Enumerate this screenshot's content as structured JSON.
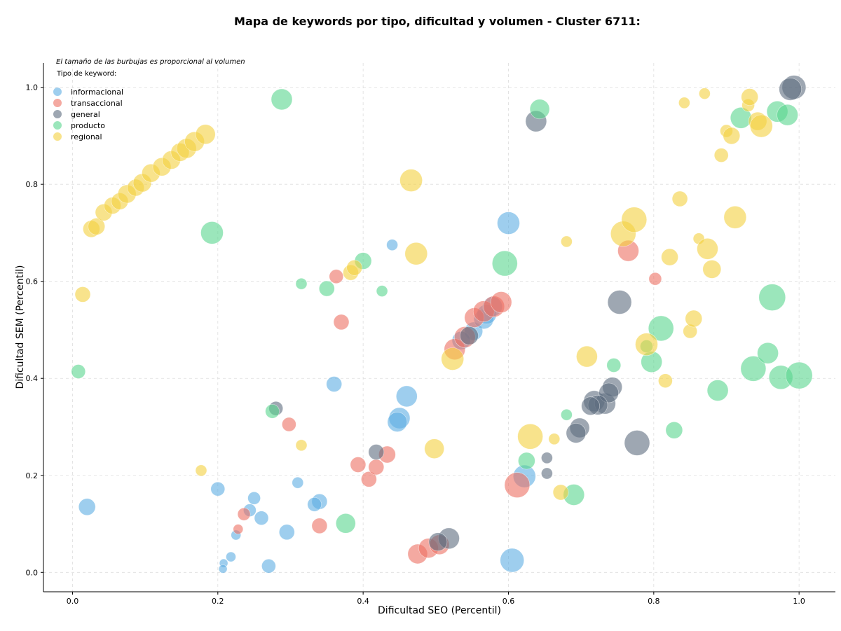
{
  "chart_data": {
    "type": "scatter",
    "title": "Mapa de keywords por tipo, dificultad y volumen - Cluster 6711:",
    "xlabel": "Dificultad SEO (Percentil)",
    "ylabel": "Dificultad SEM (Percentil)",
    "xlim": [
      -0.04,
      1.05
    ],
    "ylim": [
      -0.04,
      1.05
    ],
    "xticks": [
      "0.0",
      "0.2",
      "0.4",
      "0.6",
      "0.8",
      "1.0"
    ],
    "yticks": [
      "0.0",
      "0.2",
      "0.4",
      "0.6",
      "0.8",
      "1.0"
    ],
    "grid": true,
    "note": "El tamaño de las burbujas es proporcional al volumen",
    "legend_title": "Tipo de keyword:",
    "legend_position": "top-left",
    "series": [
      {
        "name": "informacional",
        "color": "#5dade2",
        "points": [
          [
            0.6,
            0.72,
            16
          ],
          [
            0.44,
            0.675,
            8
          ],
          [
            0.36,
            0.388,
            11
          ],
          [
            0.46,
            0.363,
            15
          ],
          [
            0.45,
            0.318,
            15
          ],
          [
            0.447,
            0.31,
            14
          ],
          [
            0.02,
            0.135,
            12
          ],
          [
            0.2,
            0.172,
            10
          ],
          [
            0.25,
            0.153,
            9
          ],
          [
            0.26,
            0.112,
            10
          ],
          [
            0.244,
            0.128,
            9
          ],
          [
            0.31,
            0.185,
            8
          ],
          [
            0.34,
            0.146,
            11
          ],
          [
            0.333,
            0.14,
            10
          ],
          [
            0.295,
            0.083,
            11
          ],
          [
            0.27,
            0.013,
            10
          ],
          [
            0.218,
            0.032,
            7
          ],
          [
            0.208,
            0.019,
            6
          ],
          [
            0.207,
            0.007,
            6
          ],
          [
            0.225,
            0.077,
            7
          ],
          [
            0.605,
            0.025,
            17
          ],
          [
            0.622,
            0.198,
            16
          ],
          [
            0.552,
            0.497,
            13
          ],
          [
            0.566,
            0.522,
            14
          ],
          [
            0.57,
            0.532,
            14
          ],
          [
            0.578,
            0.548,
            14
          ],
          [
            0.535,
            0.478,
            13
          ]
        ]
      },
      {
        "name": "transaccional",
        "color": "#ec7063",
        "points": [
          [
            0.363,
            0.61,
            10
          ],
          [
            0.37,
            0.516,
            11
          ],
          [
            0.298,
            0.305,
            10
          ],
          [
            0.393,
            0.222,
            11
          ],
          [
            0.408,
            0.192,
            11
          ],
          [
            0.418,
            0.217,
            11
          ],
          [
            0.433,
            0.243,
            12
          ],
          [
            0.34,
            0.096,
            11
          ],
          [
            0.236,
            0.12,
            9
          ],
          [
            0.228,
            0.089,
            7
          ],
          [
            0.475,
            0.038,
            14
          ],
          [
            0.49,
            0.05,
            14
          ],
          [
            0.505,
            0.057,
            14
          ],
          [
            0.612,
            0.18,
            18
          ],
          [
            0.765,
            0.663,
            15
          ],
          [
            0.802,
            0.605,
            9
          ],
          [
            0.526,
            0.46,
            15
          ],
          [
            0.54,
            0.485,
            15
          ],
          [
            0.553,
            0.525,
            14
          ],
          [
            0.566,
            0.538,
            15
          ],
          [
            0.58,
            0.548,
            15
          ],
          [
            0.59,
            0.557,
            15
          ]
        ]
      },
      {
        "name": "general",
        "color": "#5d6d7e",
        "points": [
          [
            0.638,
            0.93,
            15
          ],
          [
            0.753,
            0.557,
            17
          ],
          [
            0.28,
            0.338,
            10
          ],
          [
            0.418,
            0.248,
            11
          ],
          [
            0.518,
            0.07,
            15
          ],
          [
            0.503,
            0.063,
            13
          ],
          [
            0.653,
            0.236,
            8
          ],
          [
            0.653,
            0.204,
            8
          ],
          [
            0.698,
            0.298,
            14
          ],
          [
            0.693,
            0.287,
            14
          ],
          [
            0.718,
            0.353,
            15
          ],
          [
            0.733,
            0.348,
            15
          ],
          [
            0.743,
            0.382,
            14
          ],
          [
            0.738,
            0.37,
            14
          ],
          [
            0.723,
            0.345,
            14
          ],
          [
            0.713,
            0.343,
            13
          ],
          [
            0.777,
            0.267,
            18
          ],
          [
            0.993,
            1.0,
            17
          ],
          [
            0.988,
            0.996,
            16
          ],
          [
            0.546,
            0.488,
            13
          ]
        ]
      },
      {
        "name": "producto",
        "color": "#58d68d",
        "points": [
          [
            0.288,
            0.975,
            15
          ],
          [
            0.192,
            0.7,
            16
          ],
          [
            0.315,
            0.595,
            8
          ],
          [
            0.35,
            0.585,
            11
          ],
          [
            0.4,
            0.642,
            12
          ],
          [
            0.426,
            0.58,
            8
          ],
          [
            0.275,
            0.332,
            10
          ],
          [
            0.376,
            0.101,
            14
          ],
          [
            0.008,
            0.414,
            10
          ],
          [
            0.643,
            0.955,
            14
          ],
          [
            0.595,
            0.637,
            18
          ],
          [
            0.625,
            0.23,
            12
          ],
          [
            0.68,
            0.325,
            8
          ],
          [
            0.69,
            0.16,
            15
          ],
          [
            0.745,
            0.427,
            10
          ],
          [
            0.797,
            0.434,
            15
          ],
          [
            0.81,
            0.503,
            18
          ],
          [
            0.828,
            0.293,
            12
          ],
          [
            0.888,
            0.375,
            15
          ],
          [
            0.92,
            0.937,
            15
          ],
          [
            0.937,
            0.42,
            18
          ],
          [
            0.957,
            0.452,
            15
          ],
          [
            0.963,
            0.567,
            19
          ],
          [
            0.97,
            0.95,
            15
          ],
          [
            0.975,
            0.402,
            17
          ],
          [
            0.984,
            0.943,
            15
          ],
          [
            1.0,
            0.406,
            19
          ],
          [
            0.79,
            0.466,
            9
          ]
        ]
      },
      {
        "name": "regional",
        "color": "#f4d03f",
        "points": [
          [
            0.014,
            0.573,
            11
          ],
          [
            0.177,
            0.21,
            8
          ],
          [
            0.315,
            0.262,
            8
          ],
          [
            0.383,
            0.618,
            11
          ],
          [
            0.388,
            0.628,
            11
          ],
          [
            0.466,
            0.808,
            16
          ],
          [
            0.473,
            0.657,
            16
          ],
          [
            0.498,
            0.255,
            14
          ],
          [
            0.523,
            0.44,
            16
          ],
          [
            0.63,
            0.28,
            18
          ],
          [
            0.663,
            0.275,
            8
          ],
          [
            0.672,
            0.165,
            11
          ],
          [
            0.68,
            0.682,
            8
          ],
          [
            0.708,
            0.445,
            15
          ],
          [
            0.758,
            0.698,
            18
          ],
          [
            0.773,
            0.727,
            18
          ],
          [
            0.79,
            0.47,
            16
          ],
          [
            0.816,
            0.395,
            10
          ],
          [
            0.822,
            0.65,
            12
          ],
          [
            0.836,
            0.77,
            11
          ],
          [
            0.842,
            0.968,
            8
          ],
          [
            0.85,
            0.497,
            10
          ],
          [
            0.855,
            0.523,
            12
          ],
          [
            0.862,
            0.688,
            8
          ],
          [
            0.87,
            0.987,
            8
          ],
          [
            0.874,
            0.667,
            15
          ],
          [
            0.88,
            0.625,
            13
          ],
          [
            0.893,
            0.86,
            10
          ],
          [
            0.9,
            0.91,
            9
          ],
          [
            0.907,
            0.9,
            12
          ],
          [
            0.912,
            0.732,
            16
          ],
          [
            0.93,
            0.963,
            9
          ],
          [
            0.932,
            0.98,
            12
          ],
          [
            0.943,
            0.93,
            13
          ],
          [
            0.948,
            0.92,
            16
          ],
          [
            0.026,
            0.708,
            12
          ],
          [
            0.033,
            0.713,
            12
          ],
          [
            0.043,
            0.742,
            12
          ],
          [
            0.055,
            0.756,
            12
          ],
          [
            0.065,
            0.765,
            12
          ],
          [
            0.075,
            0.78,
            13
          ],
          [
            0.087,
            0.793,
            12
          ],
          [
            0.096,
            0.803,
            13
          ],
          [
            0.108,
            0.823,
            13
          ],
          [
            0.123,
            0.836,
            13
          ],
          [
            0.136,
            0.85,
            13
          ],
          [
            0.148,
            0.866,
            13
          ],
          [
            0.157,
            0.874,
            14
          ],
          [
            0.168,
            0.888,
            14
          ],
          [
            0.183,
            0.903,
            14
          ]
        ]
      }
    ]
  }
}
